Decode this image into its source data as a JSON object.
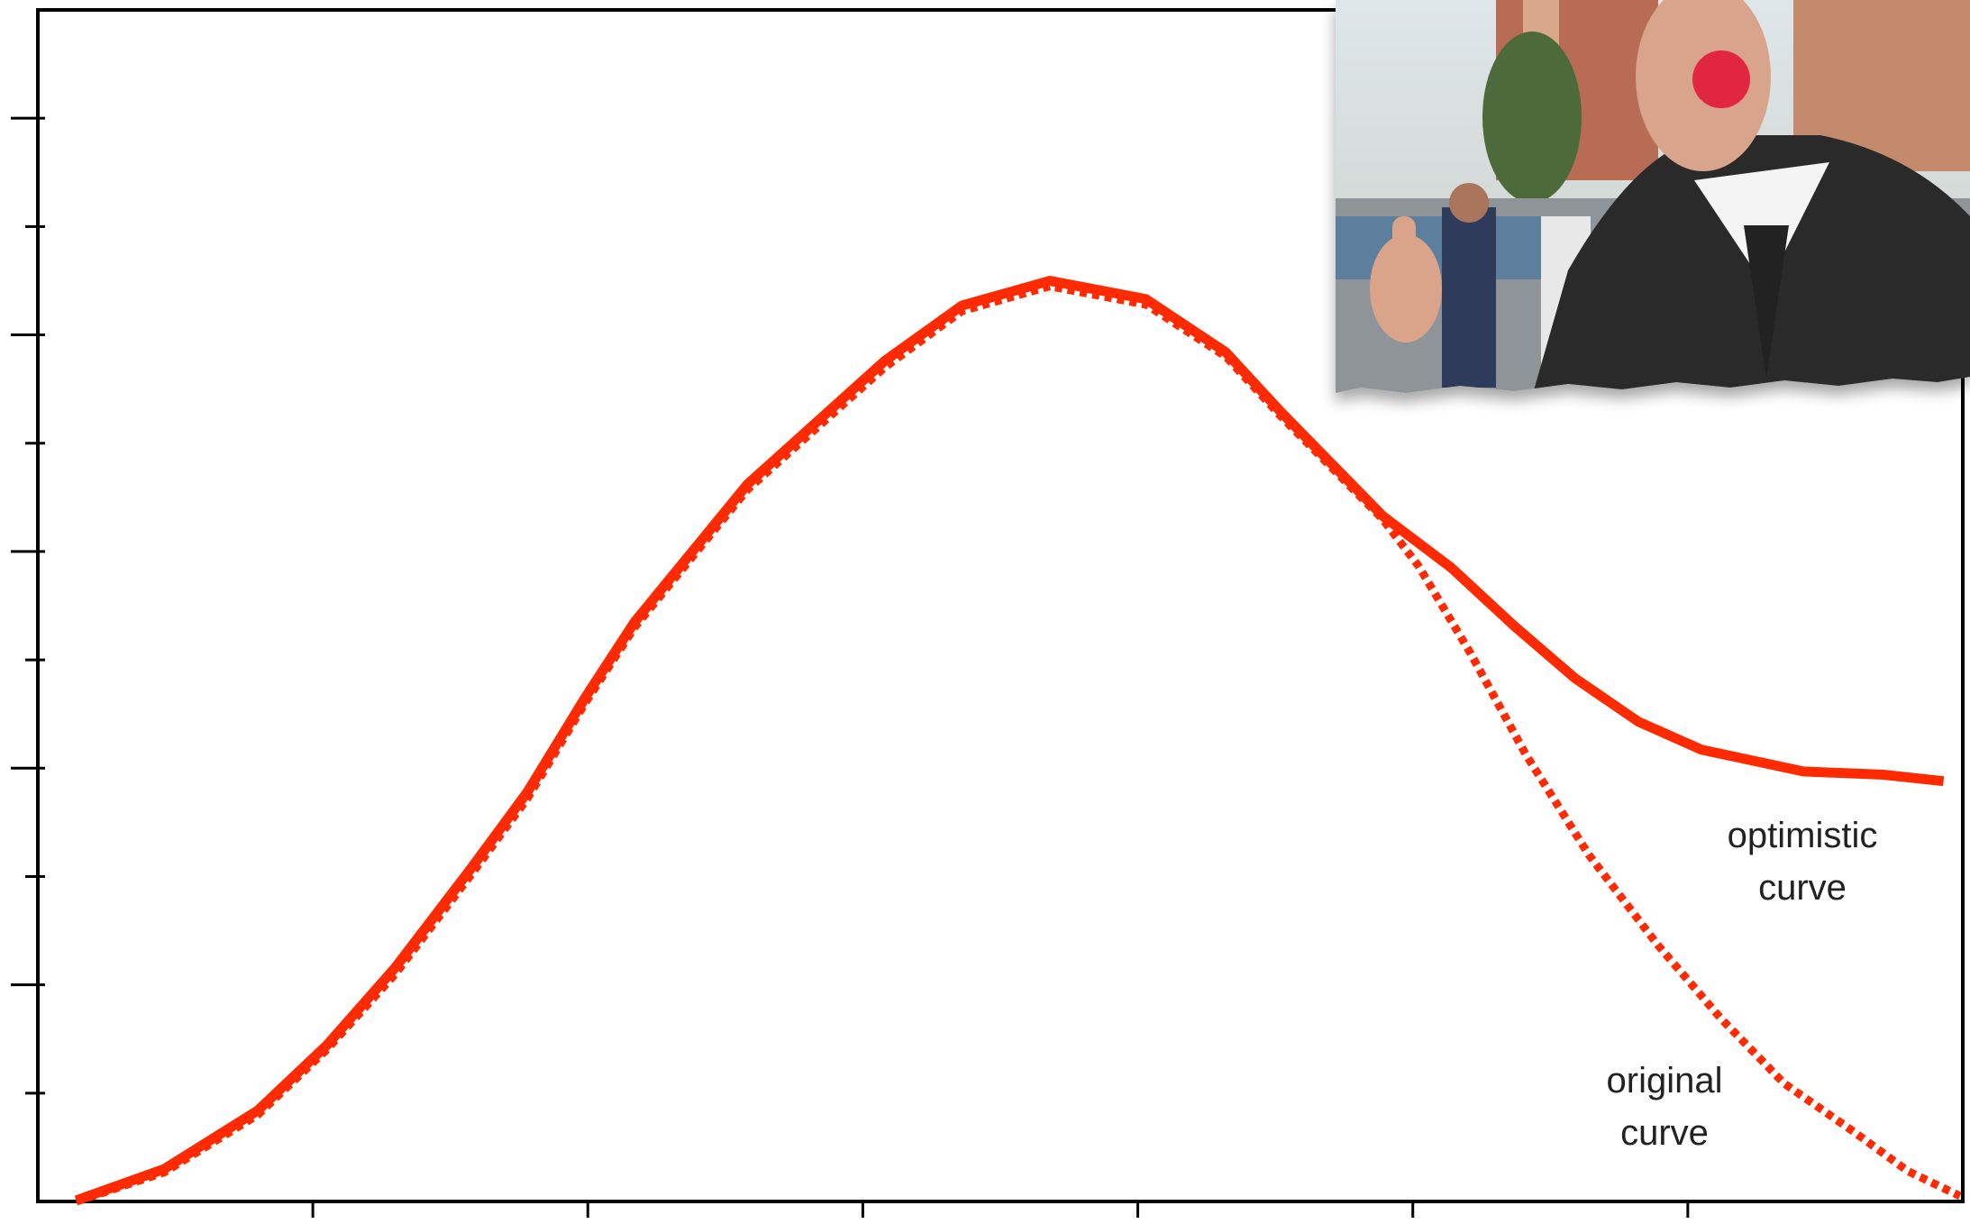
{
  "chart_data": {
    "type": "line",
    "xlim": [
      0,
      7
    ],
    "xticks": [
      1,
      2,
      3,
      4,
      5,
      6
    ],
    "ylim": [
      0,
      11
    ],
    "yticks": [
      1,
      2,
      3,
      4,
      5,
      6,
      7,
      8,
      9,
      10
    ],
    "annotations": [
      "optimistic\ncurve",
      "original\ncurve"
    ],
    "series": [
      {
        "name": "optimistic curve",
        "color": "#ff2a00",
        "style": "solid",
        "x": [
          0.14,
          0.46,
          0.8,
          1.05,
          1.3,
          1.58,
          1.78,
          1.99,
          2.17,
          2.58,
          3.08,
          3.36,
          3.68,
          4.03,
          4.32,
          4.52,
          4.89,
          5.14,
          5.37,
          5.59,
          5.82,
          6.05,
          6.42,
          6.71,
          6.93
        ],
        "values": [
          0.01,
          0.3,
          0.84,
          1.44,
          2.16,
          3.09,
          3.78,
          4.65,
          5.35,
          6.62,
          7.76,
          8.27,
          8.5,
          8.33,
          7.84,
          7.29,
          6.33,
          5.85,
          5.31,
          4.83,
          4.43,
          4.17,
          3.97,
          3.94,
          3.88
        ]
      },
      {
        "name": "original curve",
        "color": "#ff2a00",
        "style": "dotted",
        "x": [
          0.14,
          0.46,
          0.8,
          1.05,
          1.3,
          1.58,
          1.78,
          1.99,
          2.17,
          2.58,
          3.08,
          3.36,
          3.68,
          4.03,
          4.32,
          4.52,
          4.89,
          5.02,
          5.21,
          5.41,
          5.64,
          5.89,
          6.12,
          6.35,
          6.6,
          6.8,
          6.99
        ],
        "values": [
          0.0,
          0.27,
          0.8,
          1.4,
          2.1,
          3.03,
          3.72,
          4.6,
          5.3,
          6.57,
          7.7,
          8.22,
          8.45,
          8.28,
          7.8,
          7.25,
          6.3,
          5.87,
          5.06,
          4.13,
          3.2,
          2.37,
          1.69,
          1.09,
          0.65,
          0.28,
          0.05
        ]
      }
    ]
  }
}
